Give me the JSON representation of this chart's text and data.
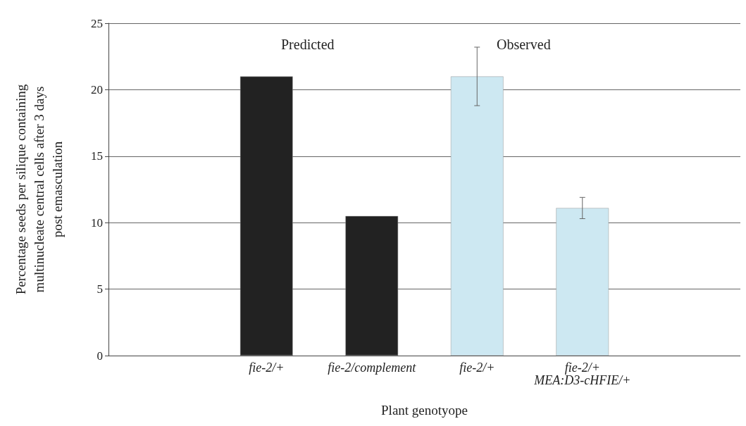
{
  "chart_data": {
    "type": "bar",
    "xlabel": "Plant genotyope",
    "ylabel": "Percentage seeds per silique containing\nmultinucleate central cells after 3 days\npost emasculation",
    "categories": [
      null,
      "fie-2/+",
      "fie-2/complement",
      "fie-2/+",
      "fie-2/+\nMEA:D3-cHFIE/+",
      null
    ],
    "values": [
      null,
      21,
      10.5,
      21,
      11.1,
      null
    ],
    "colors": [
      "#222222",
      "#222222",
      "#222222",
      "#cde8f2",
      "#cde8f2",
      "#222222"
    ],
    "errors": [
      null,
      null,
      null,
      2.2,
      0.8,
      null
    ],
    "ylim": [
      0,
      25
    ],
    "yticks": [
      0,
      5,
      10,
      15,
      20,
      25
    ],
    "grid": "y",
    "annotations": [
      "Predicted",
      "Observed"
    ]
  }
}
